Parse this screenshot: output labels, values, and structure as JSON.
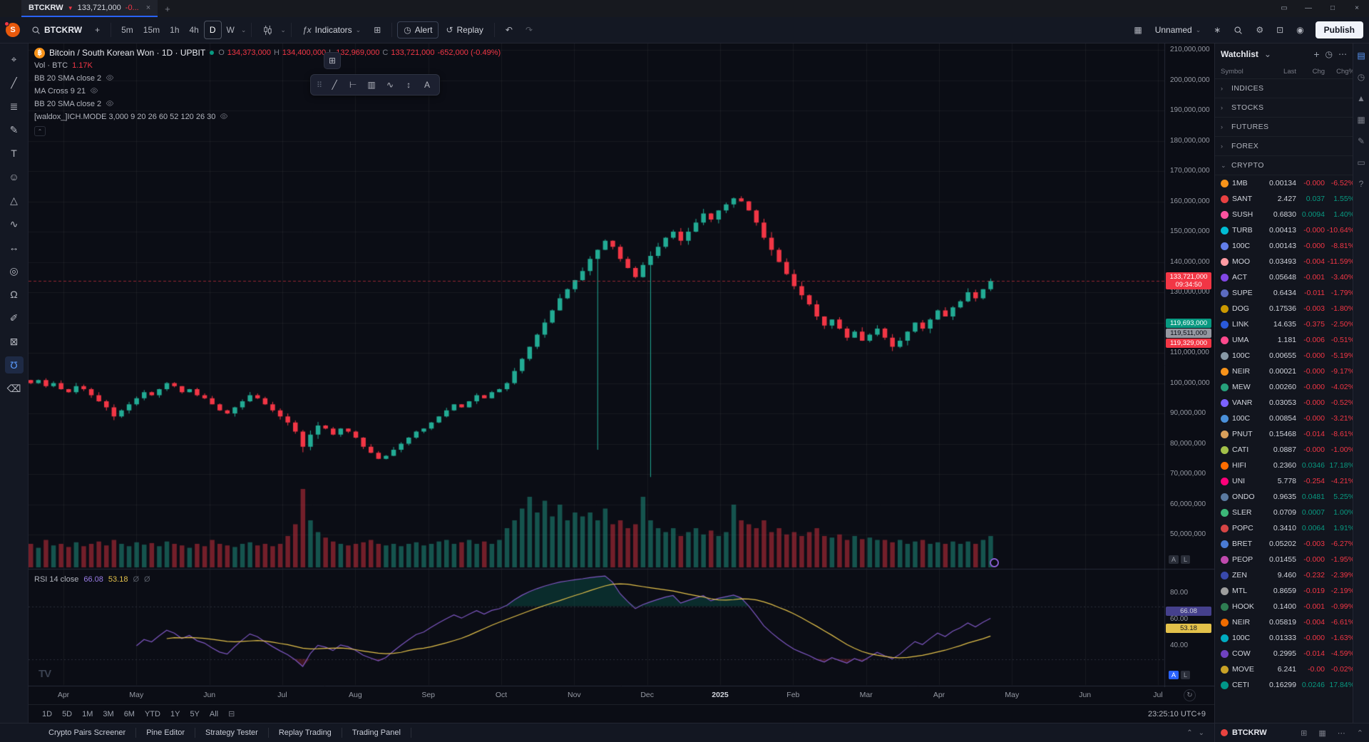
{
  "titlebar": {
    "tab": {
      "symbol": "BTCKRW",
      "price": "133,721,000",
      "change": "-0...",
      "close_glyph": "×"
    },
    "new_tab_glyph": "+",
    "window_glyphs": {
      "cast": "▭",
      "minimize": "—",
      "maximize": "□",
      "close": "×"
    }
  },
  "toolbar": {
    "avatar_initial": "S",
    "symbol": "BTCKRW",
    "add_glyph": "+",
    "timeframes": [
      {
        "label": "5m"
      },
      {
        "label": "15m"
      },
      {
        "label": "1h"
      },
      {
        "label": "4h"
      },
      {
        "label": "D",
        "active": true
      },
      {
        "label": "W"
      }
    ],
    "indicators_label": "Indicators",
    "alert_label": "Alert",
    "replay_label": "Replay",
    "undo_glyph": "↶",
    "redo_glyph": "↷",
    "layout_name": "Unnamed",
    "publish_label": "Publish"
  },
  "left_rail": {
    "tools": [
      {
        "name": "crosshair-tool",
        "glyph": "⌖"
      },
      {
        "name": "trend-line-tool",
        "glyph": "╱"
      },
      {
        "name": "fib-retracement-tool",
        "glyph": "≣"
      },
      {
        "name": "brush-tool",
        "glyph": "✎"
      },
      {
        "name": "text-tool",
        "glyph": "T"
      },
      {
        "name": "emoji-tool",
        "glyph": "☺"
      },
      {
        "name": "pattern-tool",
        "glyph": "△"
      },
      {
        "name": "forecast-tool",
        "glyph": "∿"
      },
      {
        "name": "measure-tool",
        "glyph": "↔"
      },
      {
        "name": "zoom-tool",
        "glyph": "◎"
      },
      {
        "name": "magnet-tool",
        "glyph": "Ω"
      },
      {
        "name": "draw-tool",
        "glyph": "✐"
      },
      {
        "name": "lock-tool",
        "glyph": "⊠"
      },
      {
        "name": "magnet-mode-tool",
        "glyph": "Ʊ",
        "active": true
      },
      {
        "name": "remove-drawings-tool",
        "glyph": "⌫"
      }
    ]
  },
  "float_toolbar": {
    "drag_glyph": "⠿",
    "grid_glyph": "⊞",
    "icons": [
      {
        "name": "trend-line-icon",
        "glyph": "╱"
      },
      {
        "name": "horizontal-ray-icon",
        "glyph": "⊢"
      },
      {
        "name": "bars-pattern-icon",
        "glyph": "▥"
      },
      {
        "name": "curve-icon",
        "glyph": "∿"
      },
      {
        "name": "projection-icon",
        "glyph": "↕"
      },
      {
        "name": "annotation-icon",
        "glyph": "A"
      }
    ]
  },
  "legend": {
    "title": "Bitcoin / South Korean Won · 1D · UPBIT",
    "ohlc": {
      "o_k": "O",
      "o_v": "134,373,000",
      "h_k": "H",
      "h_v": "134,400,000",
      "l_k": "L",
      "l_v": "132,969,000",
      "c_k": "C",
      "c_v": "133,721,000",
      "change": "-652,000 (-0.49%)"
    },
    "vol_label": "Vol · BTC",
    "vol_value": "1.17K",
    "indicators": [
      "BB 20 SMA close 2",
      "MA Cross 9 21",
      "BB 20 SMA close 2",
      "[waldox_]ICH.MODE 3,000 9 20 26 60 52 120 26 30"
    ],
    "collapse_glyph": "⌃"
  },
  "price_axis": {
    "badges": [
      {
        "name": "last-price-badge",
        "text": "133,721,000",
        "sub": "09:34:50",
        "bg": "#f23645",
        "fg": "#ffffff",
        "price": 133.721
      },
      {
        "name": "upper-band-badge",
        "text": "119,693,000",
        "bg": "#089981",
        "fg": "#ffffff",
        "price": 119.693,
        "offset": 0
      },
      {
        "name": "mid-band-badge",
        "text": "119,511,000",
        "bg": "#9598a1",
        "fg": "#0b0d15",
        "price": 119.693,
        "offset": 14
      },
      {
        "name": "lower-band-badge",
        "text": "119,329,000",
        "bg": "#f23645",
        "fg": "#ffffff",
        "price": 119.693,
        "offset": 28
      }
    ]
  },
  "panes": {
    "auto_label": "A",
    "log_label": "L"
  },
  "rsi": {
    "label": "RSI 14 close",
    "value": "66.08",
    "ma_value": "53.18",
    "placeholder1": "Ø",
    "placeholder2": "Ø",
    "ticks": [
      80,
      60,
      40
    ],
    "badges": [
      {
        "name": "rsi-value-badge",
        "text": "66.08",
        "bg": "#45408c",
        "fg": "#d1d4dc",
        "value": 66.08
      },
      {
        "name": "rsi-ma-badge",
        "text": "53.18",
        "bg": "#e3c14a",
        "fg": "#1a1c23",
        "value": 53.18
      }
    ]
  },
  "time_axis": {
    "realtime_glyph": "↻"
  },
  "range_bar": {
    "items": [
      "1D",
      "5D",
      "1M",
      "3M",
      "6M",
      "YTD",
      "1Y",
      "5Y",
      "All"
    ],
    "calendar_glyph": "⊟",
    "clock": "23:25:10 UTC+9"
  },
  "status_tabs": [
    "Crypto Pairs Screener",
    "Pine Editor",
    "Strategy Tester",
    "Replay Trading",
    "Trading Panel"
  ],
  "watchlist": {
    "title": "Watchlist",
    "caret_glyph": "⌄",
    "add_glyph": "+",
    "alerts_glyph": "◷",
    "menu_glyph": "⋯",
    "columns": [
      "Symbol",
      "Last",
      "Chg",
      "Chg%"
    ],
    "sections": [
      {
        "label": "INDICES",
        "expanded": false
      },
      {
        "label": "STOCKS",
        "expanded": false
      },
      {
        "label": "FUTURES",
        "expanded": false
      },
      {
        "label": "FOREX",
        "expanded": false
      },
      {
        "label": "CRYPTO",
        "expanded": true
      }
    ],
    "rows": [
      {
        "ticker": "1MB",
        "last": "0.00134",
        "chg": "-0.000",
        "pct": "-6.52%",
        "color": "#f7931a"
      },
      {
        "ticker": "SANT",
        "last": "2.427",
        "chg": "0.037",
        "pct": "1.55%",
        "color": "#e84142"
      },
      {
        "ticker": "SUSH",
        "last": "0.6830",
        "chg": "0.0094",
        "pct": "1.40%",
        "color": "#fa52a0"
      },
      {
        "ticker": "TURB",
        "last": "0.00413",
        "chg": "-0.000",
        "pct": "-10.64%",
        "color": "#00bcd4"
      },
      {
        "ticker": "100C",
        "last": "0.00143",
        "chg": "-0.000",
        "pct": "-8.81%",
        "color": "#627eea"
      },
      {
        "ticker": "MOO",
        "last": "0.03493",
        "chg": "-0.004",
        "pct": "-11.59%",
        "color": "#ff9aa2"
      },
      {
        "ticker": "ACT",
        "last": "0.05648",
        "chg": "-0.001",
        "pct": "-3.40%",
        "color": "#8247e5"
      },
      {
        "ticker": "SUPE",
        "last": "0.6434",
        "chg": "-0.011",
        "pct": "-1.79%",
        "color": "#5c6bc0"
      },
      {
        "ticker": "DOG",
        "last": "0.17536",
        "chg": "-0.003",
        "pct": "-1.80%",
        "color": "#cb9800"
      },
      {
        "ticker": "LINK",
        "last": "14.635",
        "chg": "-0.375",
        "pct": "-2.50%",
        "color": "#2a5ada"
      },
      {
        "ticker": "UMA",
        "last": "1.181",
        "chg": "-0.006",
        "pct": "-0.51%",
        "color": "#ff4a8d"
      },
      {
        "ticker": "100C",
        "last": "0.00655",
        "chg": "-0.000",
        "pct": "-5.19%",
        "color": "#8899a6"
      },
      {
        "ticker": "NEIR",
        "last": "0.00021",
        "chg": "-0.000",
        "pct": "-9.17%",
        "color": "#f7931a"
      },
      {
        "ticker": "MEW",
        "last": "0.00260",
        "chg": "-0.000",
        "pct": "-4.02%",
        "color": "#26a17b"
      },
      {
        "ticker": "VANR",
        "last": "0.03053",
        "chg": "-0.000",
        "pct": "-0.52%",
        "color": "#7b61ff"
      },
      {
        "ticker": "100C",
        "last": "0.00854",
        "chg": "-0.000",
        "pct": "-3.21%",
        "color": "#4a90d9"
      },
      {
        "ticker": "PNUT",
        "last": "0.15468",
        "chg": "-0.014",
        "pct": "-8.61%",
        "color": "#d9a05b"
      },
      {
        "ticker": "CATI",
        "last": "0.0887",
        "chg": "-0.000",
        "pct": "-1.00%",
        "color": "#a3c14a"
      },
      {
        "ticker": "HIFI",
        "last": "0.2360",
        "chg": "0.0346",
        "pct": "17.18%",
        "color": "#ff6d00"
      },
      {
        "ticker": "UNI",
        "last": "5.778",
        "chg": "-0.254",
        "pct": "-4.21%",
        "color": "#ff007a"
      },
      {
        "ticker": "ONDO",
        "last": "0.9635",
        "chg": "0.0481",
        "pct": "5.25%",
        "color": "#5b7aa0"
      },
      {
        "ticker": "SLER",
        "last": "0.0709",
        "chg": "0.0007",
        "pct": "1.00%",
        "color": "#3cb878"
      },
      {
        "ticker": "POPC",
        "last": "0.3410",
        "chg": "0.0064",
        "pct": "1.91%",
        "color": "#d64545"
      },
      {
        "ticker": "BRET",
        "last": "0.05202",
        "chg": "-0.003",
        "pct": "-6.27%",
        "color": "#4a7bd4"
      },
      {
        "ticker": "PEOP",
        "last": "0.01455",
        "chg": "-0.000",
        "pct": "-1.95%",
        "color": "#c04aae"
      },
      {
        "ticker": "ZEN",
        "last": "9.460",
        "chg": "-0.232",
        "pct": "-2.39%",
        "color": "#3949ab"
      },
      {
        "ticker": "MTL",
        "last": "0.8659",
        "chg": "-0.019",
        "pct": "-2.19%",
        "color": "#9e9e9e"
      },
      {
        "ticker": "HOOK",
        "last": "0.1400",
        "chg": "-0.001",
        "pct": "-0.99%",
        "color": "#2e7d52"
      },
      {
        "ticker": "NEIR",
        "last": "0.05819",
        "chg": "-0.004",
        "pct": "-6.61%",
        "color": "#ef6c00"
      },
      {
        "ticker": "100C",
        "last": "0.01333",
        "chg": "-0.000",
        "pct": "-1.63%",
        "color": "#00acc1"
      },
      {
        "ticker": "COW",
        "last": "0.2995",
        "chg": "-0.014",
        "pct": "-4.59%",
        "color": "#6f42c1"
      },
      {
        "ticker": "MOVE",
        "last": "6.241",
        "chg": "-0.00",
        "pct": "-0.02%",
        "color": "#c9a227"
      },
      {
        "ticker": "CETI",
        "last": "0.16299",
        "chg": "0.0246",
        "pct": "17.84%",
        "color": "#009688"
      }
    ],
    "footer_symbol": "BTCKRW",
    "footer_icons": [
      {
        "name": "grid-layout-icon",
        "glyph": "⊞"
      },
      {
        "name": "watchlist-grid-icon",
        "glyph": "▦"
      },
      {
        "name": "more-icon",
        "glyph": "⋯"
      },
      {
        "name": "collapse-panel-icon",
        "glyph": "⌃"
      }
    ]
  },
  "right_rail": {
    "icons": [
      {
        "name": "watchlist-panel-icon",
        "glyph": "▤",
        "active": true
      },
      {
        "name": "alerts-icon",
        "glyph": "◷"
      },
      {
        "name": "hotlists-icon",
        "glyph": "▲"
      },
      {
        "name": "calendar-icon",
        "glyph": "▦"
      },
      {
        "name": "ideas-icon",
        "glyph": "✎"
      },
      {
        "name": "chat-icon",
        "glyph": "▭"
      },
      {
        "name": "help-icon",
        "glyph": "?"
      }
    ]
  },
  "chart_data": {
    "type": "candlestick+volume+rsi",
    "title": "Bitcoin / South Korean Won 1D UPBIT",
    "symbol": "BTCKRW",
    "exchange": "UPBIT",
    "interval": "1D",
    "unit": "KRW millions",
    "ylim": [
      45,
      215
    ],
    "last_price": 133721000,
    "ohlc": {
      "open": 134373000,
      "high": 134400000,
      "low": 132969000,
      "close": 133721000
    },
    "change": -652000,
    "change_pct": -0.49,
    "volume_label": "1.17K",
    "price_ticks": [
      210,
      200,
      190,
      180,
      170,
      160,
      150,
      140,
      130,
      120,
      110,
      100,
      90,
      80,
      70,
      60,
      50
    ],
    "months": [
      "Apr",
      "May",
      "Jun",
      "Jul",
      "Aug",
      "Sep",
      "Oct",
      "Nov",
      "Dec",
      "2025",
      "Feb",
      "Mar",
      "Apr",
      "May",
      "Jun",
      "Jul"
    ],
    "first_open": 101,
    "closes": [
      100,
      101,
      99,
      100,
      98,
      97,
      99,
      98,
      96,
      94,
      92,
      89,
      91,
      93,
      95,
      97,
      96,
      98,
      100,
      99,
      97,
      98,
      96,
      95,
      93,
      91,
      90,
      92,
      94,
      96,
      95,
      93,
      91,
      89,
      87,
      84,
      79,
      83,
      86,
      85,
      83,
      85,
      84,
      82,
      79,
      77,
      75,
      76,
      78,
      80,
      82,
      84,
      85,
      87,
      89,
      91,
      93,
      92,
      94,
      96,
      95,
      97,
      98,
      100,
      104,
      108,
      112,
      116,
      120,
      124,
      128,
      131,
      134,
      137,
      141,
      144,
      147,
      145,
      141,
      138,
      135,
      139,
      142,
      145,
      148,
      150,
      147,
      150,
      153,
      156,
      154,
      157,
      159,
      161,
      160,
      157,
      153,
      148,
      144,
      140,
      136,
      132,
      129,
      126,
      122,
      119,
      121,
      118,
      115,
      117,
      114,
      116,
      118,
      115,
      112,
      114,
      117,
      120,
      118,
      121,
      124,
      122,
      125,
      127,
      130,
      128,
      131,
      133.7
    ],
    "volumes": [
      0.3,
      0.25,
      0.35,
      0.28,
      0.3,
      0.26,
      0.32,
      0.27,
      0.3,
      0.33,
      0.28,
      0.35,
      0.3,
      0.27,
      0.32,
      0.29,
      0.31,
      0.27,
      0.33,
      0.3,
      0.28,
      0.25,
      0.3,
      0.27,
      0.35,
      0.3,
      0.28,
      0.26,
      0.3,
      0.32,
      0.28,
      0.3,
      0.27,
      0.3,
      0.4,
      0.55,
      1.0,
      0.6,
      0.45,
      0.38,
      0.33,
      0.3,
      0.28,
      0.3,
      0.32,
      0.35,
      0.3,
      0.28,
      0.3,
      0.27,
      0.3,
      0.32,
      0.28,
      0.3,
      0.33,
      0.35,
      0.3,
      0.32,
      0.35,
      0.3,
      0.33,
      0.3,
      0.35,
      0.5,
      0.6,
      0.75,
      0.9,
      0.7,
      0.85,
      0.65,
      0.8,
      0.6,
      0.7,
      0.65,
      0.7,
      0.6,
      0.75,
      0.55,
      0.6,
      0.5,
      0.55,
      0.9,
      0.6,
      0.5,
      0.45,
      0.5,
      0.4,
      0.45,
      0.5,
      0.42,
      0.47,
      0.4,
      0.45,
      0.8,
      0.6,
      0.55,
      0.5,
      0.6,
      0.45,
      0.5,
      0.42,
      0.45,
      0.4,
      0.45,
      0.5,
      0.4,
      0.38,
      0.42,
      0.35,
      0.4,
      0.36,
      0.38,
      0.35,
      0.35,
      0.32,
      0.35,
      0.3,
      0.33,
      0.35,
      0.3,
      0.32,
      0.3,
      0.33,
      0.3,
      0.33,
      0.3,
      0.35,
      0.4
    ],
    "low_overrides": {
      "75": 78,
      "82": 69
    },
    "rsi_period": 14,
    "rsi_ma_period": 14,
    "rsi_levels": [
      70,
      30
    ],
    "colors": {
      "up": "#22ab94",
      "down": "#f23645",
      "rsi_line": "#7e57c2",
      "rsi_ma": "#e3c14a",
      "grid": "rgba(250,250,255,0.05)",
      "bg": "#0b0d15",
      "divider": "#262b38",
      "accent": "#2962ff"
    }
  }
}
